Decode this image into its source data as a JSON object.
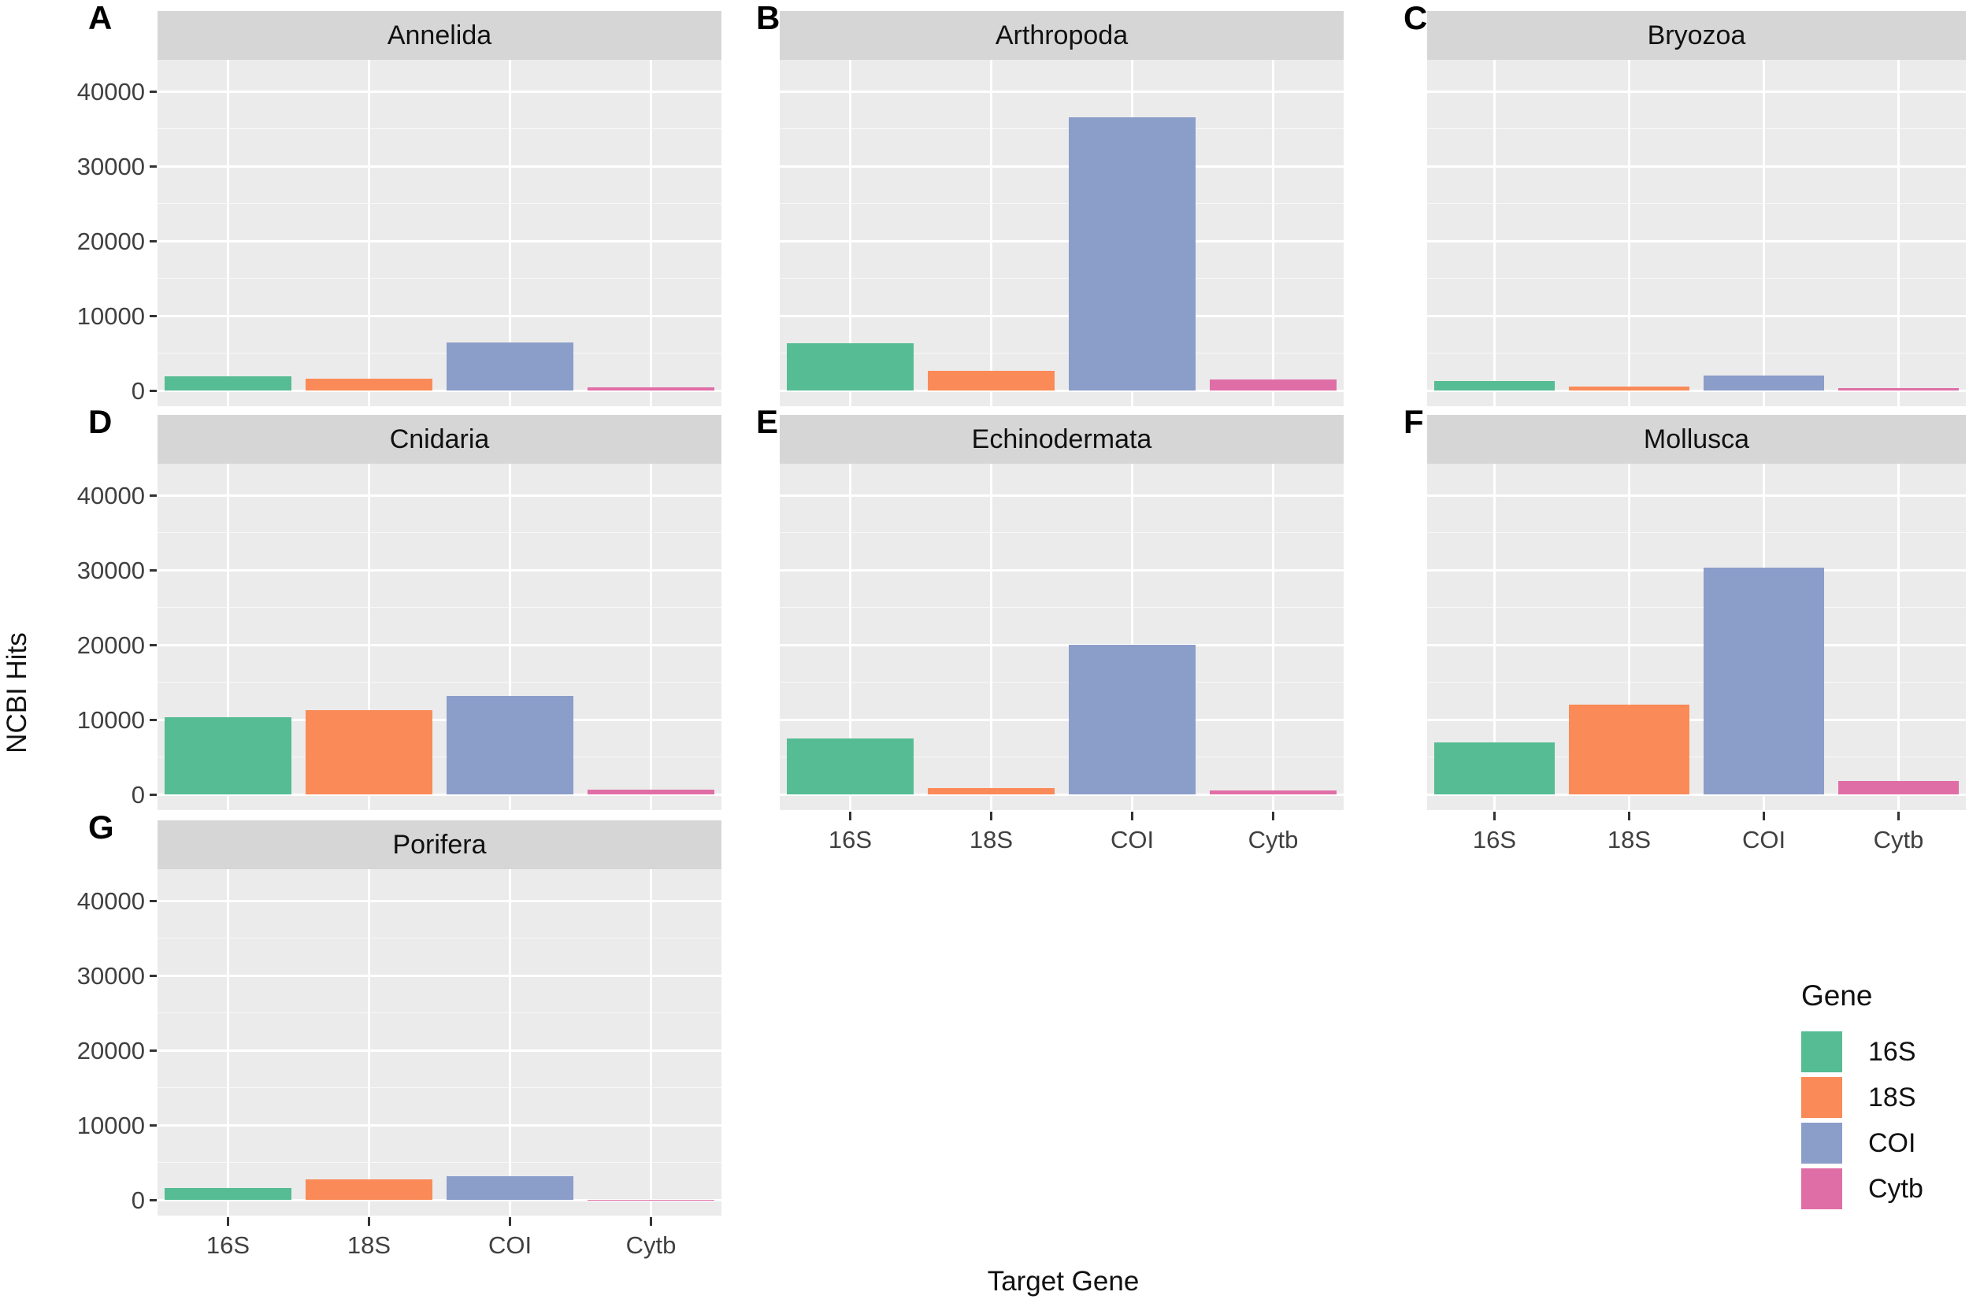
{
  "figure": {
    "y_axis_title": "NCBI Hits",
    "x_axis_title": "Target Gene",
    "background_color": "#ffffff",
    "panel_background_color": "#ebebeb",
    "strip_background_color": "#d6d6d6",
    "gridline_color": "#ffffff"
  },
  "legend": {
    "title": "Gene",
    "entries": [
      {
        "label": "16S",
        "color": "#55BC93"
      },
      {
        "label": "18S",
        "color": "#FA8A58"
      },
      {
        "label": "COI",
        "color": "#8B9DC9"
      },
      {
        "label": "Cytb",
        "color": "#E06EA6"
      }
    ]
  },
  "chart_data": {
    "type": "bar",
    "title": "",
    "xlabel": "Target Gene",
    "ylabel": "NCBI Hits",
    "categories": [
      "16S",
      "18S",
      "COI",
      "Cytb"
    ],
    "series_colors": {
      "16S": "#55BC93",
      "18S": "#FA8A58",
      "COI": "#8B9DC9",
      "Cytb": "#E06EA6"
    },
    "ylim": [
      0,
      44000
    ],
    "yticks": [
      0,
      10000,
      20000,
      30000,
      40000
    ],
    "ytick_labels": [
      "0",
      "10000",
      "20000",
      "30000",
      "40000"
    ],
    "minor_yticks": [
      5000,
      15000,
      25000,
      35000
    ],
    "grid": true,
    "legend_position": "bottom-right",
    "facets": [
      {
        "tag": "A",
        "title": "Annelida",
        "row": 0,
        "col": 0,
        "values": [
          1900,
          1600,
          6400,
          450
        ]
      },
      {
        "tag": "B",
        "title": "Arthropoda",
        "row": 0,
        "col": 1,
        "values": [
          6300,
          2600,
          36500,
          1500
        ]
      },
      {
        "tag": "C",
        "title": "Bryozoa",
        "row": 0,
        "col": 2,
        "values": [
          1250,
          550,
          2000,
          350
        ]
      },
      {
        "tag": "D",
        "title": "Cnidaria",
        "row": 1,
        "col": 0,
        "values": [
          10300,
          11300,
          13200,
          600
        ]
      },
      {
        "tag": "E",
        "title": "Echinodermata",
        "row": 1,
        "col": 1,
        "values": [
          7500,
          800,
          20000,
          500
        ]
      },
      {
        "tag": "F",
        "title": "Mollusca",
        "row": 1,
        "col": 2,
        "values": [
          7000,
          12000,
          30300,
          1800
        ]
      },
      {
        "tag": "G",
        "title": "Porifera",
        "row": 2,
        "col": 0,
        "values": [
          1600,
          2700,
          3200,
          50
        ]
      }
    ]
  }
}
